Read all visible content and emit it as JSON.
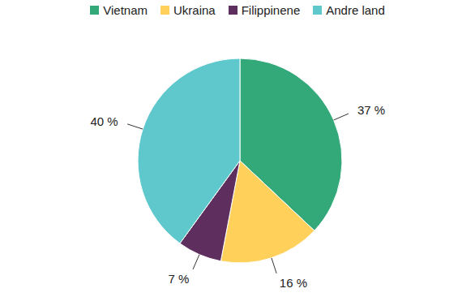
{
  "chart_data": {
    "type": "pie",
    "categories": [
      "Vietnam",
      "Ukraina",
      "Filippinene",
      "Andre land"
    ],
    "values": [
      37,
      16,
      7,
      40
    ],
    "value_labels": [
      "37 %",
      "16 %",
      "7 %",
      "40 %"
    ],
    "colors": [
      "#33a97a",
      "#ffd05a",
      "#5e2e5e",
      "#5fc8cc"
    ],
    "data_labels": true,
    "legend": "top"
  }
}
